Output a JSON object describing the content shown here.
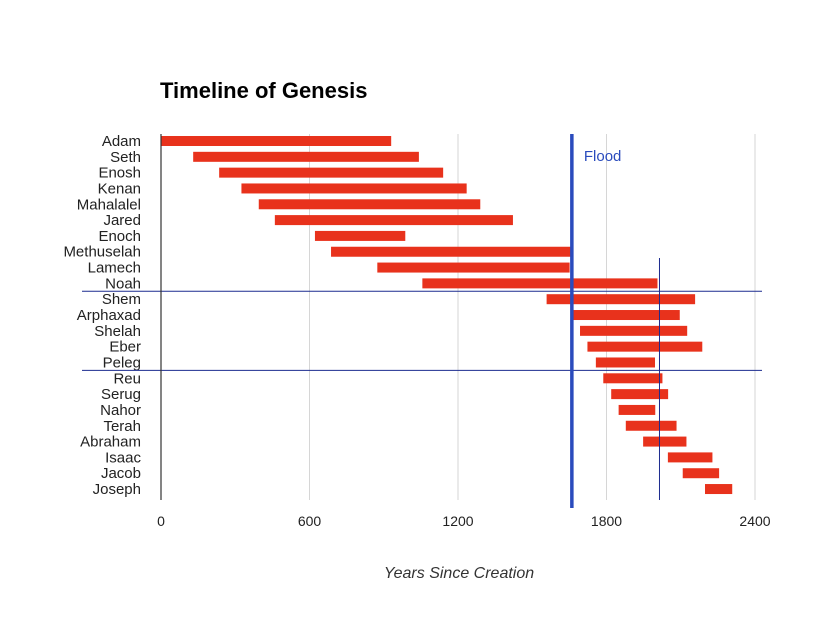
{
  "chart_data": {
    "type": "bar",
    "title": "Timeline of Genesis",
    "xlabel": "Years Since Creation",
    "ylabel": "",
    "xlim": [
      0,
      2400
    ],
    "xticks": [
      "0",
      "600",
      "1200",
      "1800",
      "2400"
    ],
    "bar_color": "#e8321c",
    "grid": true,
    "legend": "none",
    "people": [
      {
        "name": "Adam",
        "start": 0,
        "end": 930
      },
      {
        "name": "Seth",
        "start": 130,
        "end": 1042
      },
      {
        "name": "Enosh",
        "start": 235,
        "end": 1140
      },
      {
        "name": "Kenan",
        "start": 325,
        "end": 1235
      },
      {
        "name": "Mahalalel",
        "start": 395,
        "end": 1290
      },
      {
        "name": "Jared",
        "start": 460,
        "end": 1422
      },
      {
        "name": "Enoch",
        "start": 622,
        "end": 987
      },
      {
        "name": "Methuselah",
        "start": 687,
        "end": 1656
      },
      {
        "name": "Lamech",
        "start": 874,
        "end": 1651
      },
      {
        "name": "Noah",
        "start": 1056,
        "end": 2006
      },
      {
        "name": "Shem",
        "start": 1558,
        "end": 2158
      },
      {
        "name": "Arphaxad",
        "start": 1658,
        "end": 2096
      },
      {
        "name": "Shelah",
        "start": 1693,
        "end": 2126
      },
      {
        "name": "Eber",
        "start": 1723,
        "end": 2187
      },
      {
        "name": "Peleg",
        "start": 1757,
        "end": 1996
      },
      {
        "name": "Reu",
        "start": 1787,
        "end": 2026
      },
      {
        "name": "Serug",
        "start": 1819,
        "end": 2049
      },
      {
        "name": "Nahor",
        "start": 1849,
        "end": 1997
      },
      {
        "name": "Terah",
        "start": 1878,
        "end": 2083
      },
      {
        "name": "Abraham",
        "start": 1948,
        "end": 2123
      },
      {
        "name": "Isaac",
        "start": 2048,
        "end": 2228
      },
      {
        "name": "Jacob",
        "start": 2108,
        "end": 2255
      },
      {
        "name": "Joseph",
        "start": 2198,
        "end": 2308
      }
    ],
    "annotations": [
      {
        "label": "Flood",
        "x": 1656,
        "color": "#2a4bbd"
      }
    ]
  }
}
